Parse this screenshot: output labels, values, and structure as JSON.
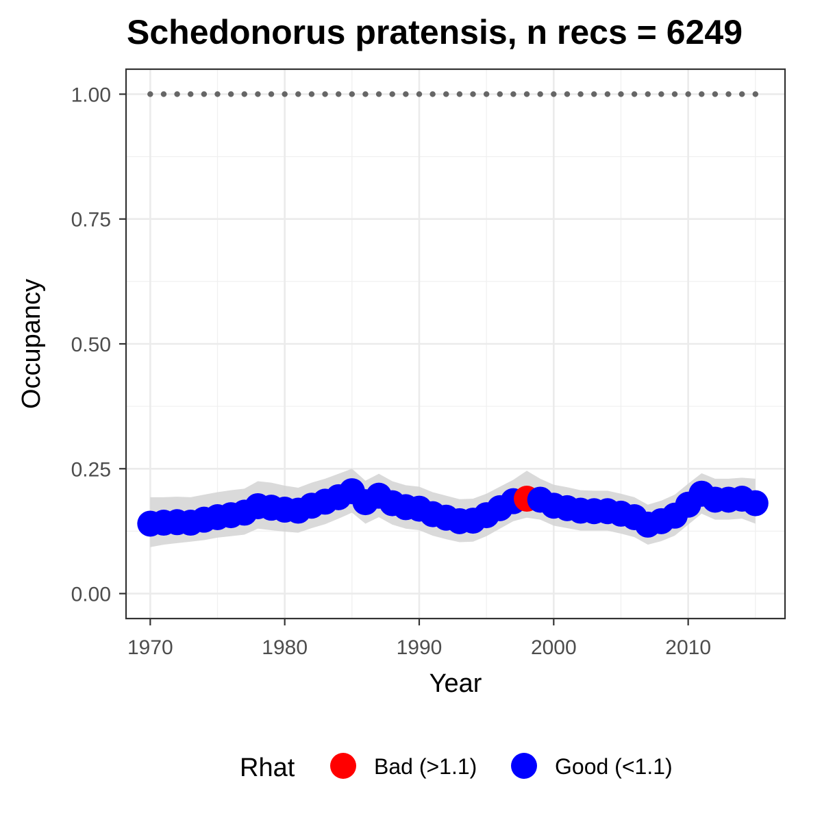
{
  "chart_data": {
    "type": "line",
    "title": "Schedonorus pratensis, n recs = 6249",
    "xlabel": "Year",
    "ylabel": "Occupancy",
    "xlim": [
      1968.2,
      2017.2
    ],
    "ylim": [
      -0.05,
      1.05
    ],
    "x_ticks": [
      1970,
      1980,
      1990,
      2000,
      2010
    ],
    "x_tick_labels": [
      "1970",
      "1980",
      "1990",
      "2000",
      "2010"
    ],
    "y_ticks": [
      0,
      0.25,
      0.5,
      0.75,
      1
    ],
    "y_tick_labels": [
      "0.00",
      "0.25",
      "0.50",
      "0.75",
      "1.00"
    ],
    "grid": true,
    "legend": {
      "title": "Rhat",
      "position": "bottom",
      "entries": [
        {
          "label": "Bad (>1.1)",
          "color": "#ff0000"
        },
        {
          "label": "Good (<1.1)",
          "color": "#0000ff"
        }
      ]
    },
    "colors": {
      "bad": "#ff0000",
      "good": "#0000ff",
      "ribbon": "#d3d3d3",
      "reference": "#666666",
      "line": "#0000ff"
    },
    "years": [
      1970,
      1971,
      1972,
      1973,
      1974,
      1975,
      1976,
      1977,
      1978,
      1979,
      1980,
      1981,
      1982,
      1983,
      1984,
      1985,
      1986,
      1987,
      1988,
      1989,
      1990,
      1991,
      1992,
      1993,
      1994,
      1995,
      1996,
      1997,
      1998,
      1999,
      2000,
      2001,
      2002,
      2003,
      2004,
      2005,
      2006,
      2007,
      2008,
      2009,
      2010,
      2011,
      2012,
      2013,
      2014,
      2015
    ],
    "occupancy": [
      0.14,
      0.142,
      0.143,
      0.142,
      0.148,
      0.153,
      0.157,
      0.162,
      0.175,
      0.172,
      0.168,
      0.166,
      0.176,
      0.184,
      0.193,
      0.205,
      0.183,
      0.196,
      0.181,
      0.173,
      0.17,
      0.159,
      0.152,
      0.145,
      0.146,
      0.157,
      0.171,
      0.185,
      0.19,
      0.188,
      0.176,
      0.171,
      0.166,
      0.165,
      0.165,
      0.16,
      0.153,
      0.138,
      0.145,
      0.156,
      0.178,
      0.2,
      0.188,
      0.188,
      0.19,
      0.181
    ],
    "lower": [
      0.093,
      0.098,
      0.101,
      0.104,
      0.107,
      0.112,
      0.115,
      0.118,
      0.13,
      0.127,
      0.124,
      0.122,
      0.131,
      0.139,
      0.15,
      0.162,
      0.14,
      0.153,
      0.138,
      0.13,
      0.127,
      0.116,
      0.109,
      0.103,
      0.104,
      0.115,
      0.13,
      0.145,
      0.152,
      0.148,
      0.136,
      0.131,
      0.126,
      0.126,
      0.126,
      0.12,
      0.113,
      0.098,
      0.105,
      0.116,
      0.138,
      0.16,
      0.148,
      0.148,
      0.15,
      0.14
    ],
    "upper": [
      0.193,
      0.193,
      0.194,
      0.193,
      0.198,
      0.203,
      0.207,
      0.21,
      0.225,
      0.222,
      0.216,
      0.212,
      0.222,
      0.23,
      0.24,
      0.25,
      0.226,
      0.24,
      0.225,
      0.217,
      0.214,
      0.203,
      0.196,
      0.189,
      0.19,
      0.2,
      0.214,
      0.228,
      0.246,
      0.23,
      0.218,
      0.213,
      0.207,
      0.206,
      0.206,
      0.2,
      0.193,
      0.178,
      0.186,
      0.198,
      0.22,
      0.241,
      0.23,
      0.23,
      0.232,
      0.23
    ],
    "rhat_status": [
      "good",
      "good",
      "good",
      "good",
      "good",
      "good",
      "good",
      "good",
      "good",
      "good",
      "good",
      "good",
      "good",
      "good",
      "good",
      "good",
      "good",
      "good",
      "good",
      "good",
      "good",
      "good",
      "good",
      "good",
      "good",
      "good",
      "good",
      "good",
      "bad",
      "good",
      "good",
      "good",
      "good",
      "good",
      "good",
      "good",
      "good",
      "good",
      "good",
      "good",
      "good",
      "good",
      "good",
      "good",
      "good",
      "good"
    ],
    "reference_line": {
      "y": 1.0,
      "style": "dotted"
    }
  }
}
